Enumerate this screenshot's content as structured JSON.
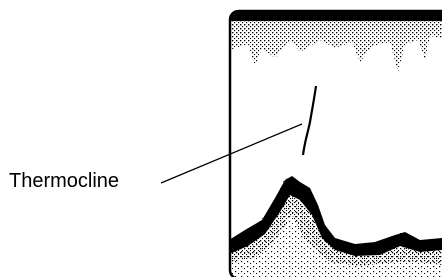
{
  "label": "Thermocline"
}
